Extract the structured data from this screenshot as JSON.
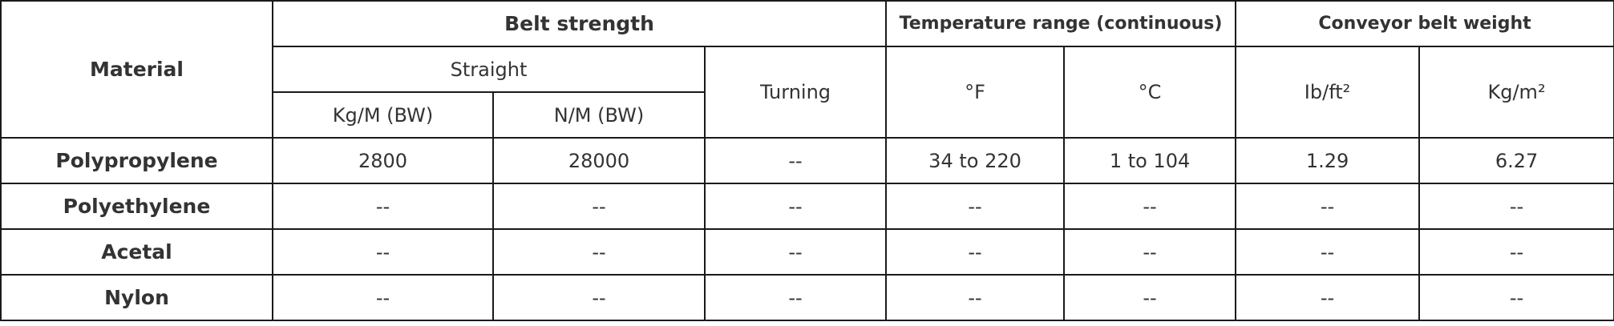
{
  "header": {
    "material": "Material",
    "belt_strength": "Belt strength",
    "straight": "Straight",
    "kg_m": "Kg/M (BW)",
    "n_m": "N/M (BW)",
    "turning": "Turning",
    "temperature": "Temperature range (continuous)",
    "f": "°F",
    "c": "°C",
    "weight": "Conveyor belt weight",
    "lb_ft2": "Ib/ft²",
    "kg_m2": "Kg/m²"
  },
  "rows": [
    [
      "Polypropylene",
      "2800",
      "28000",
      "--",
      "34 to 220",
      "1 to 104",
      "1.29",
      "6.27"
    ],
    [
      "Polyethylene",
      "--",
      "--",
      "--",
      "--",
      "--",
      "--",
      "--"
    ],
    [
      "Acetal",
      "--",
      "--",
      "--",
      "--",
      "--",
      "--",
      "--"
    ],
    [
      "Nylon",
      "--",
      "--",
      "--",
      "--",
      "--",
      "--",
      "--"
    ]
  ]
}
